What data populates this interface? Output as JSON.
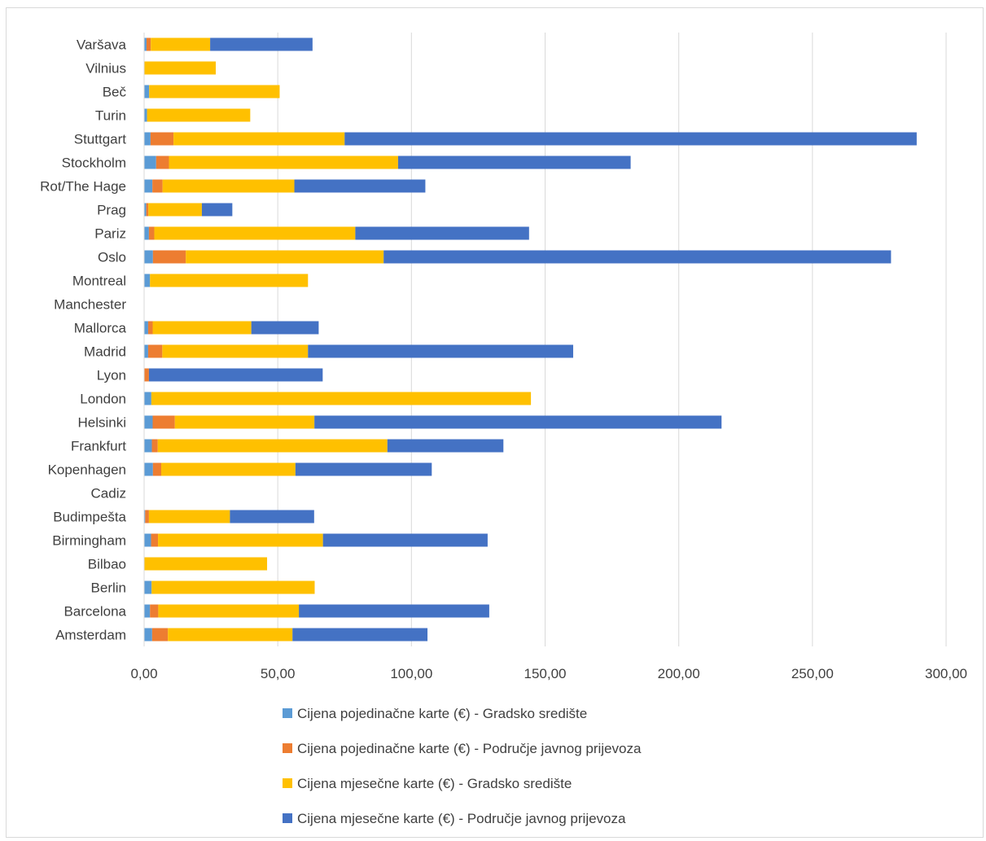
{
  "chart_data": {
    "type": "bar",
    "orientation": "horizontal",
    "stacked": true,
    "categories": [
      "Varšava",
      "Vilnius",
      "Beč",
      "Turin",
      "Stuttgart",
      "Stockholm",
      "Rot/The Hage",
      "Prag",
      "Pariz",
      "Oslo",
      "Montreal",
      "Manchester",
      "Mallorca",
      "Madrid",
      "Lyon",
      "London",
      "Helsinki",
      "Frankfurt",
      "Kopenhagen",
      "Cadiz",
      "Budimpešta",
      "Birmingham",
      "Bilbao",
      "Berlin",
      "Barcelona",
      "Amsterdam"
    ],
    "series": [
      {
        "name": "Cijena pojedinačne karte (€) - Gradsko središte",
        "color": "#5b9bd5",
        "values": [
          0.9,
          0.0,
          1.9,
          1.1,
          2.4,
          4.5,
          3.1,
          0.8,
          1.8,
          3.3,
          2.2,
          0,
          1.5,
          1.5,
          0.0,
          2.7,
          3.2,
          2.9,
          3.3,
          0,
          0.4,
          2.6,
          0.0,
          2.8,
          2.2,
          3.0
        ]
      },
      {
        "name": "Cijena pojedinačne karte (€) - Područje javnog prijevoza",
        "color": "#ed7d31",
        "values": [
          1.6,
          0.0,
          0.0,
          0.0,
          8.6,
          4.8,
          3.8,
          0.8,
          2.0,
          12.3,
          0.0,
          0,
          1.7,
          5.3,
          1.8,
          0.0,
          8.3,
          2.2,
          3.1,
          0,
          1.4,
          2.6,
          0.0,
          0.0,
          3.1,
          5.9
        ]
      },
      {
        "name": "Cijena mjesečne karte (€) - Gradsko središte",
        "color": "#ffc000",
        "values": [
          22.2,
          26.8,
          48.8,
          38.6,
          64.0,
          85.7,
          49.3,
          20.0,
          75.2,
          74.0,
          59.1,
          0,
          36.9,
          54.5,
          0.0,
          142.0,
          52.2,
          85.9,
          50.2,
          0,
          30.3,
          61.7,
          46.0,
          61.0,
          52.6,
          46.6
        ]
      },
      {
        "name": "Cijena mjesečne karte (€) - Područje javnog prijevoza",
        "color": "#4472c4",
        "values": [
          38.3,
          0.0,
          0.0,
          0.0,
          214.0,
          87.0,
          49.0,
          11.4,
          65.0,
          189.8,
          0.0,
          0,
          25.2,
          99.2,
          65.0,
          0.0,
          152.3,
          43.4,
          51.0,
          0,
          31.5,
          61.6,
          0.0,
          0.0,
          71.2,
          50.5
        ]
      }
    ],
    "xlim": [
      0,
      300
    ],
    "x_ticks": [
      "0,00",
      "50,00",
      "100,00",
      "150,00",
      "200,00",
      "250,00",
      "300,00"
    ],
    "x_tick_values": [
      0,
      50,
      100,
      150,
      200,
      250,
      300
    ],
    "grid": true,
    "legend_position": "bottom",
    "title": "",
    "xlabel": "",
    "ylabel": ""
  }
}
